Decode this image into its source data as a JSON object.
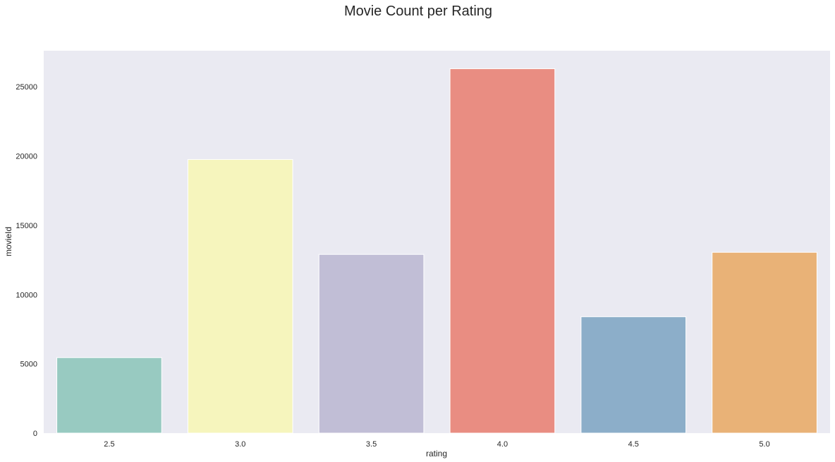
{
  "chart_data": {
    "type": "bar",
    "title": "Movie Count per Rating",
    "xlabel": "rating",
    "ylabel": "movieId",
    "categories": [
      "2.5",
      "3.0",
      "3.5",
      "4.0",
      "4.5",
      "5.0"
    ],
    "values": [
      5450,
      19750,
      12900,
      26300,
      8400,
      13050
    ],
    "ylim": [
      0,
      27600
    ],
    "yticks": [
      0,
      5000,
      10000,
      15000,
      20000,
      25000
    ],
    "grid": false,
    "colors": [
      "#98cac1",
      "#f6f5bd",
      "#c1bed6",
      "#e98d82",
      "#8caec9",
      "#e9b277"
    ],
    "background": "#eaeaf2"
  }
}
